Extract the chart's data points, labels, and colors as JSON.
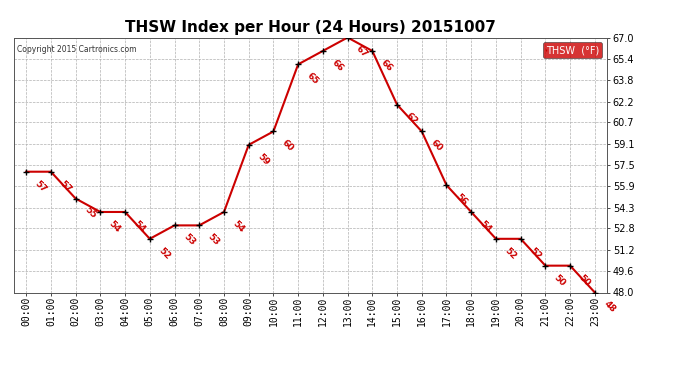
{
  "title": "THSW Index per Hour (24 Hours) 20151007",
  "copyright": "Copyright 2015 Cartronics.com",
  "legend_label": "THSW  (°F)",
  "hour_labels": [
    "00:00",
    "01:00",
    "02:00",
    "03:00",
    "04:00",
    "05:00",
    "06:00",
    "07:00",
    "08:00",
    "09:00",
    "10:00",
    "11:00",
    "12:00",
    "13:00",
    "14:00",
    "15:00",
    "16:00",
    "17:00",
    "18:00",
    "19:00",
    "20:00",
    "21:00",
    "22:00",
    "23:00"
  ],
  "x_data": [
    0,
    1,
    2,
    3,
    4,
    5,
    6,
    7,
    8,
    9,
    10,
    11,
    12,
    13,
    14,
    15,
    16,
    17,
    18,
    19,
    20,
    21,
    22,
    23
  ],
  "y_data": [
    57,
    57,
    55,
    54,
    54,
    52,
    53,
    53,
    54,
    59,
    60,
    65,
    66,
    67,
    66,
    62,
    60,
    56,
    54,
    52,
    52,
    50,
    50,
    48
  ],
  "ylim_min": 48.0,
  "ylim_max": 67.0,
  "yticks": [
    48.0,
    49.6,
    51.2,
    52.8,
    54.3,
    55.9,
    57.5,
    59.1,
    60.7,
    62.2,
    63.8,
    65.4,
    67.0
  ],
  "line_color": "#cc0000",
  "marker_color": "#000000",
  "label_color": "#cc0000",
  "bg_color": "#ffffff",
  "grid_color": "#b0b0b0",
  "title_fontsize": 11,
  "label_fontsize": 6.5,
  "tick_fontsize": 7,
  "legend_bg": "#cc0000",
  "legend_text_color": "#ffffff"
}
